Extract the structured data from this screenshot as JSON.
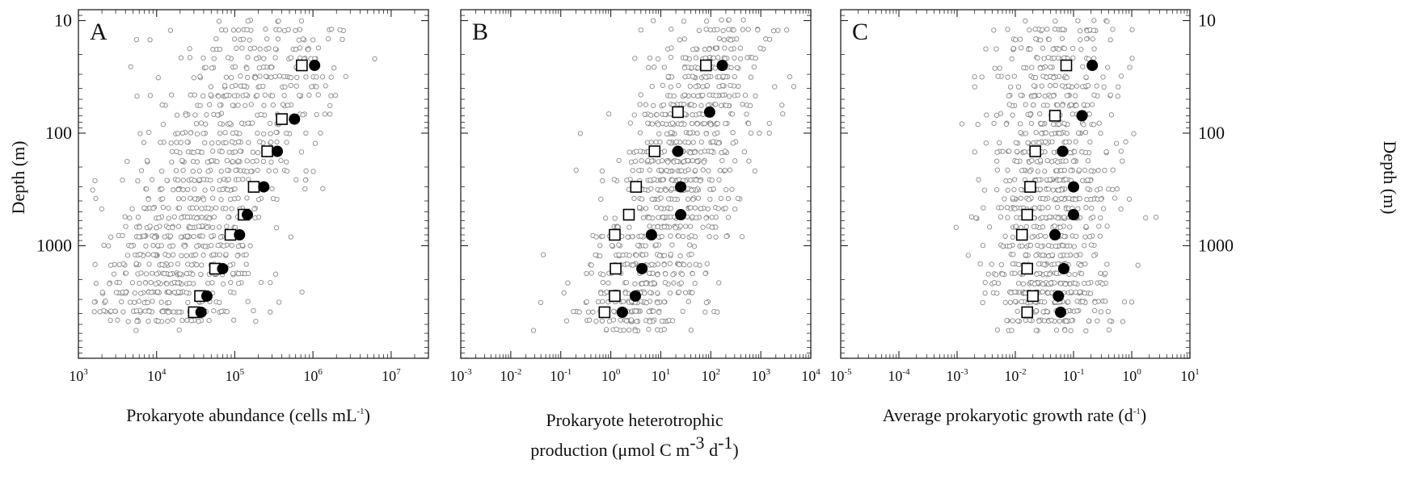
{
  "chart_data": [
    {
      "type": "scatter",
      "panel_label": "A",
      "xlabel": "Prokaryote abundance (cells mL",
      "xlabel_sup": "-1",
      "xlabel_tail": ")",
      "ylabel": "Depth (m)",
      "xscale": "log",
      "yscale": "log",
      "yaxis_inverted": true,
      "xlim": [
        1000,
        30000000
      ],
      "ylim": [
        8,
        10000
      ],
      "x_tick_labels": [
        {
          "base": "10",
          "exp": "3",
          "value": 1000
        },
        {
          "base": "10",
          "exp": "4",
          "value": 10000
        },
        {
          "base": "10",
          "exp": "5",
          "value": 100000
        },
        {
          "base": "10",
          "exp": "6",
          "value": 1000000
        },
        {
          "base": "10",
          "exp": "7",
          "value": 10000000
        }
      ],
      "y_tick_labels": [
        {
          "text": "10",
          "value": 10
        },
        {
          "text": "100",
          "value": 100
        },
        {
          "text": "1000",
          "value": 1000
        }
      ],
      "series": [
        {
          "marker": "open-square",
          "color": "#000000",
          "points": [
            [
              720000,
              25
            ],
            [
              400000,
              75
            ],
            [
              260000,
              145
            ],
            [
              175000,
              300
            ],
            [
              130000,
              530
            ],
            [
              88000,
              800
            ],
            [
              56000,
              1600
            ],
            [
              36000,
              2800
            ],
            [
              30000,
              3900
            ]
          ]
        },
        {
          "marker": "filled-circle",
          "color": "#000000",
          "points": [
            [
              1050000,
              25
            ],
            [
              580000,
              75
            ],
            [
              350000,
              145
            ],
            [
              235000,
              300
            ],
            [
              145000,
              530
            ],
            [
              115000,
              800
            ],
            [
              70000,
              1600
            ],
            [
              44000,
              2800
            ],
            [
              37000,
              3900
            ]
          ]
        }
      ],
      "cloud": {
        "a": 0.55,
        "b": 5.45,
        "sx": 0.55,
        "sy": 0.2,
        "ymin": 10,
        "ymax": 5000
      }
    },
    {
      "type": "scatter",
      "panel_label": "B",
      "xlabel": "Prokaryote heterotrophic",
      "xlabel_line2": "production (μmol C m",
      "xlabel_sup": "-3",
      "xlabel_mid": " d",
      "xlabel_sup2": "-1",
      "xlabel_tail": ")",
      "xscale": "log",
      "yscale": "log",
      "yaxis_inverted": true,
      "xlim": [
        0.001,
        10000
      ],
      "ylim": [
        8,
        10000
      ],
      "x_tick_labels": [
        {
          "base": "10",
          "exp": "-3",
          "value": 0.001
        },
        {
          "base": "10",
          "exp": "-2",
          "value": 0.01
        },
        {
          "base": "10",
          "exp": "-1",
          "value": 0.1
        },
        {
          "base": "10",
          "exp": "0",
          "value": 1
        },
        {
          "base": "10",
          "exp": "1",
          "value": 10
        },
        {
          "base": "10",
          "exp": "2",
          "value": 100
        },
        {
          "base": "10",
          "exp": "3",
          "value": 1000
        },
        {
          "base": "10",
          "exp": "4",
          "value": 10000
        }
      ],
      "series": [
        {
          "marker": "open-square",
          "color": "#000000",
          "points": [
            [
              80,
              25
            ],
            [
              22,
              65
            ],
            [
              7.5,
              145
            ],
            [
              3.2,
              300
            ],
            [
              2.3,
              530
            ],
            [
              1.2,
              800
            ],
            [
              1.25,
              1600
            ],
            [
              1.2,
              2800
            ],
            [
              0.75,
              3900
            ]
          ]
        },
        {
          "marker": "filled-circle",
          "color": "#000000",
          "points": [
            [
              170,
              25
            ],
            [
              95,
              65
            ],
            [
              22,
              145
            ],
            [
              25,
              300
            ],
            [
              25,
              530
            ],
            [
              6.5,
              800
            ],
            [
              4.2,
              1600
            ],
            [
              3.1,
              2800
            ],
            [
              1.7,
              3900
            ]
          ]
        }
      ],
      "cloud": {
        "a": 0.65,
        "b": 2.2,
        "sx": 0.65,
        "sy": 0.22,
        "ymin": 10,
        "ymax": 5500
      }
    },
    {
      "type": "scatter",
      "panel_label": "C",
      "xlabel": "Average prokaryotic growth rate (d",
      "xlabel_sup": "-1",
      "xlabel_tail": ")",
      "ylabel": "Depth (m)",
      "xscale": "log",
      "yscale": "log",
      "yaxis_inverted": true,
      "xlim": [
        1e-05,
        10
      ],
      "ylim": [
        8,
        10000
      ],
      "x_tick_labels": [
        {
          "base": "10",
          "exp": "-5",
          "value": 1e-05
        },
        {
          "base": "10",
          "exp": "-4",
          "value": 0.0001
        },
        {
          "base": "10",
          "exp": "-3",
          "value": 0.001
        },
        {
          "base": "10",
          "exp": "-2",
          "value": 0.01
        },
        {
          "base": "10",
          "exp": "-1",
          "value": 0.1
        },
        {
          "base": "10",
          "exp": "0",
          "value": 1
        },
        {
          "base": "10",
          "exp": "1",
          "value": 10
        }
      ],
      "y_tick_labels": [
        {
          "text": "10",
          "value": 10
        },
        {
          "text": "100",
          "value": 100
        },
        {
          "text": "1000",
          "value": 1000
        }
      ],
      "series": [
        {
          "marker": "open-square",
          "color": "#000000",
          "points": [
            [
              0.075,
              25
            ],
            [
              0.048,
              70
            ],
            [
              0.022,
              145
            ],
            [
              0.018,
              300
            ],
            [
              0.016,
              530
            ],
            [
              0.013,
              800
            ],
            [
              0.016,
              1600
            ],
            [
              0.02,
              2800
            ],
            [
              0.016,
              3900
            ]
          ]
        },
        {
          "marker": "filled-circle",
          "color": "#000000",
          "points": [
            [
              0.21,
              25
            ],
            [
              0.14,
              70
            ],
            [
              0.065,
              145
            ],
            [
              0.1,
              300
            ],
            [
              0.1,
              530
            ],
            [
              0.048,
              800
            ],
            [
              0.068,
              1600
            ],
            [
              0.055,
              2800
            ],
            [
              0.06,
              3900
            ]
          ]
        }
      ],
      "cloud": {
        "a": 0.0,
        "b": -1.4,
        "sx": 0.55,
        "sy": 0.22,
        "ymin": 10,
        "ymax": 5500
      }
    }
  ],
  "colors": {
    "axis": "#222222",
    "cloud_marker": "#8a8a8a",
    "mean_marker": "#000000"
  }
}
